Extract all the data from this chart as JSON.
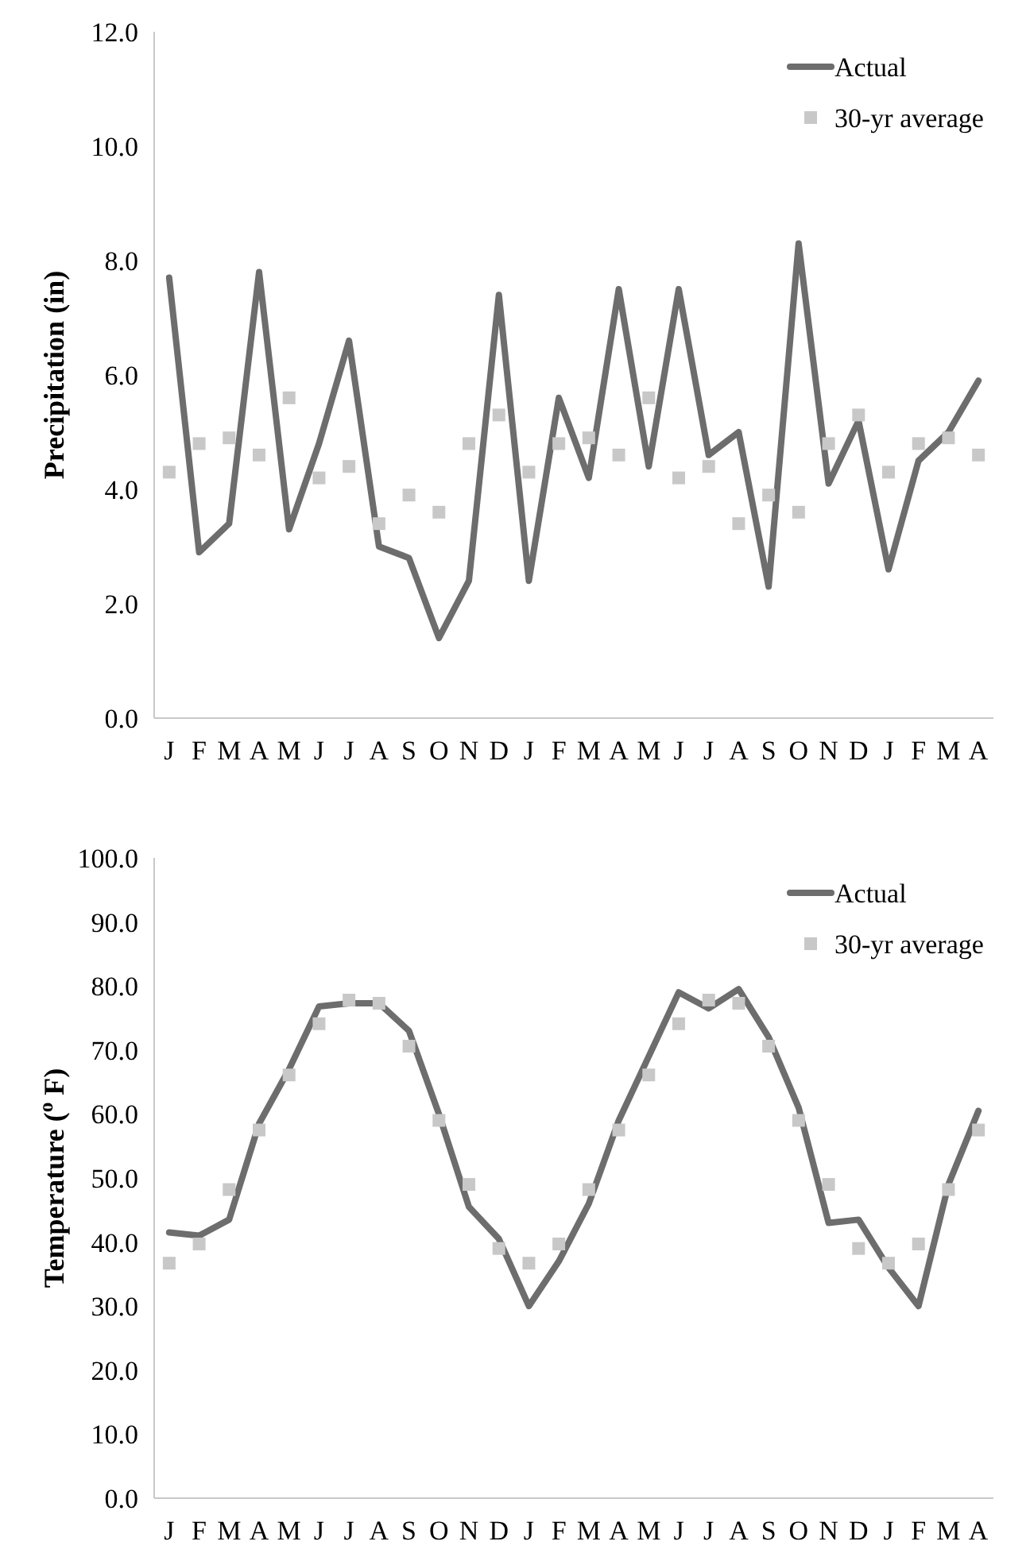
{
  "chart_data": [
    {
      "type": "line",
      "ylabel": "Precipitation (in)",
      "categories": [
        "J",
        "F",
        "M",
        "A",
        "M",
        "J",
        "J",
        "A",
        "S",
        "O",
        "N",
        "D",
        "J",
        "F",
        "M",
        "A",
        "M",
        "J",
        "J",
        "A",
        "S",
        "O",
        "N",
        "D",
        "J",
        "F",
        "M",
        "A"
      ],
      "ylim": [
        0,
        12
      ],
      "yticks": [
        {
          "value": 0,
          "label": "0.0"
        },
        {
          "value": 2,
          "label": "2.0"
        },
        {
          "value": 4,
          "label": "4.0"
        },
        {
          "value": 6,
          "label": "6.0"
        },
        {
          "value": 8,
          "label": "8.0"
        },
        {
          "value": 10,
          "label": "10.0"
        },
        {
          "value": 12,
          "label": "12.0"
        }
      ],
      "grid": false,
      "legend": "top right",
      "series": [
        {
          "name": "Actual",
          "type": "line",
          "color": "#6d6d6d",
          "marker": "none",
          "line_style": "solid",
          "values": [
            7.7,
            2.9,
            3.4,
            7.8,
            3.3,
            4.8,
            6.6,
            3.0,
            2.8,
            1.4,
            2.4,
            7.4,
            2.4,
            5.6,
            4.2,
            7.5,
            4.4,
            7.5,
            4.6,
            5.0,
            2.3,
            8.3,
            4.1,
            5.2,
            2.6,
            4.5,
            5.0,
            5.9
          ]
        },
        {
          "name": "30-yr average",
          "type": "scatter",
          "color": "#c8c8c8",
          "marker": "square",
          "values": [
            4.3,
            4.8,
            4.9,
            4.6,
            5.6,
            4.2,
            4.4,
            3.4,
            3.9,
            3.6,
            4.8,
            5.3,
            4.3,
            4.8,
            4.9,
            4.6,
            5.6,
            4.2,
            4.4,
            3.4,
            3.9,
            3.6,
            4.8,
            5.3,
            4.3,
            4.8,
            4.9,
            4.6
          ]
        }
      ]
    },
    {
      "type": "line",
      "ylabel": "Temperature ($^{o}$ F)",
      "categories": [
        "J",
        "F",
        "M",
        "A",
        "M",
        "J",
        "J",
        "A",
        "S",
        "O",
        "N",
        "D",
        "J",
        "F",
        "M",
        "A",
        "M",
        "J",
        "J",
        "A",
        "S",
        "O",
        "N",
        "D",
        "J",
        "F",
        "M",
        "A"
      ],
      "ylim": [
        0,
        100
      ],
      "yticks": [
        {
          "value": 0,
          "label": "0.0"
        },
        {
          "value": 10,
          "label": "10.0"
        },
        {
          "value": 20,
          "label": "20.0"
        },
        {
          "value": 30,
          "label": "30.0"
        },
        {
          "value": 40,
          "label": "40.0"
        },
        {
          "value": 50,
          "label": "50.0"
        },
        {
          "value": 60,
          "label": "60.0"
        },
        {
          "value": 70,
          "label": "70.0"
        },
        {
          "value": 80,
          "label": "80.0"
        },
        {
          "value": 90,
          "label": "90.0"
        },
        {
          "value": 100,
          "label": "100.0"
        }
      ],
      "grid": false,
      "legend": "top right",
      "series": [
        {
          "name": "Actual",
          "type": "line",
          "color": "#6d6d6d",
          "marker": "none",
          "line_style": "solid",
          "values": [
            41.5,
            41,
            43.5,
            58.5,
            67,
            76.8,
            77.3,
            77.3,
            73,
            60,
            45.5,
            40.5,
            30,
            37,
            46,
            59,
            69,
            79,
            76.5,
            79.5,
            72,
            61,
            43,
            43.5,
            36,
            30,
            49,
            60.5
          ]
        },
        {
          "name": "30-yr average",
          "type": "scatter",
          "color": "#c8c8c8",
          "marker": "square",
          "values": [
            36.7,
            39.7,
            48.2,
            57.5,
            66.1,
            74.1,
            77.8,
            77.3,
            70.6,
            59,
            49,
            39,
            36.7,
            39.7,
            48.2,
            57.5,
            66.1,
            74.1,
            77.8,
            77.3,
            70.6,
            59,
            49,
            39,
            36.7,
            39.7,
            48.2,
            57.5
          ]
        }
      ]
    }
  ]
}
